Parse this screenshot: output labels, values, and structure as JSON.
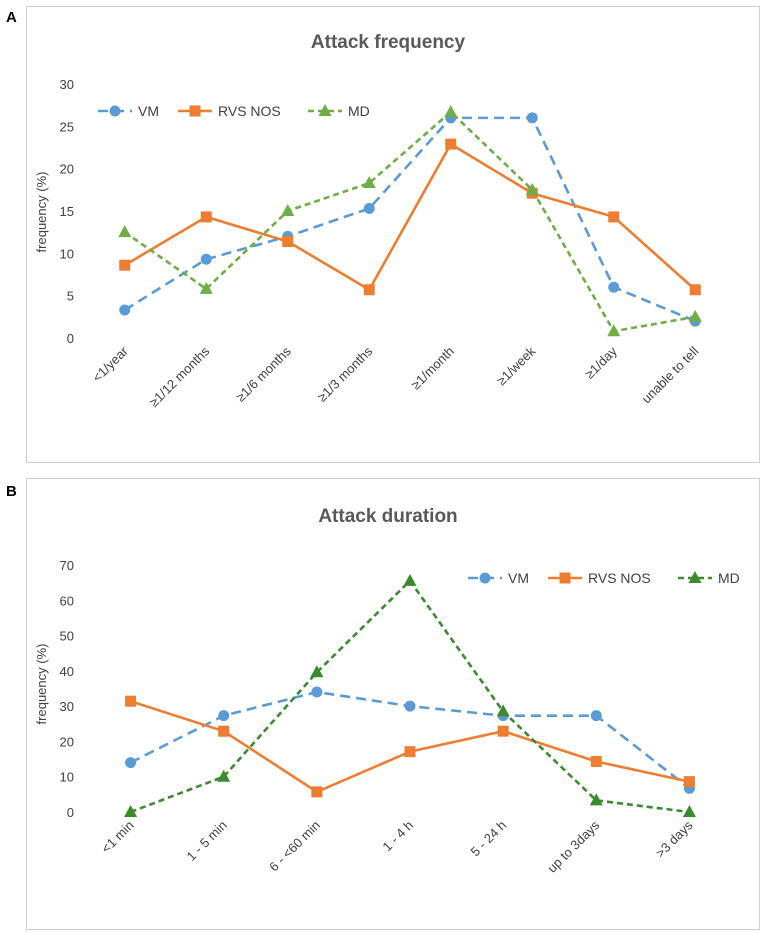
{
  "chart_data": [
    {
      "panel": "A",
      "type": "line",
      "title": "Attack frequency",
      "xlabel": "",
      "ylabel": "frequency (%)",
      "ylim": [
        0,
        30
      ],
      "yticks": [
        0,
        5,
        10,
        15,
        20,
        25,
        30
      ],
      "legend_position": "top-left",
      "categories": [
        "<1/year",
        "≥1/12 months",
        "≥1/6 months",
        "≥1/3 months",
        "≥1/month",
        "≥1/week",
        "≥1/day",
        "unable to tell"
      ],
      "series": [
        {
          "name": "VM",
          "color": "#5B9BD5",
          "marker": "circle",
          "dash": "dashed",
          "values": [
            3.3,
            9.3,
            12.0,
            15.3,
            26.0,
            26.0,
            6.0,
            2.0
          ]
        },
        {
          "name": "RVS NOS",
          "color": "#ED7D31",
          "marker": "square",
          "dash": "solid",
          "values": [
            8.6,
            14.3,
            11.4,
            5.7,
            22.9,
            17.1,
            14.3,
            5.7
          ]
        },
        {
          "name": "MD",
          "color": "#70AD47",
          "marker": "triangle",
          "dash": "dotted",
          "values": [
            12.5,
            5.8,
            15.0,
            18.3,
            26.7,
            17.5,
            0.8,
            2.5
          ]
        }
      ]
    },
    {
      "panel": "B",
      "type": "line",
      "title": "Attack duration",
      "xlabel": "",
      "ylabel": "frequency (%)",
      "ylim": [
        0,
        70
      ],
      "yticks": [
        0,
        10,
        20,
        30,
        40,
        50,
        60,
        70
      ],
      "legend_position": "top-right",
      "categories": [
        "<1 min",
        "1 - 5 min",
        "6 - <60 min",
        "1 - 4 h",
        "5 - 24 h",
        "up to 3days",
        ">3 days"
      ],
      "series": [
        {
          "name": "VM",
          "color": "#5B9BD5",
          "marker": "circle",
          "dash": "dashed",
          "values": [
            14.0,
            27.3,
            34.0,
            30.0,
            27.3,
            27.3,
            6.7
          ]
        },
        {
          "name": "RVS NOS",
          "color": "#ED7D31",
          "marker": "square",
          "dash": "solid",
          "values": [
            31.4,
            22.9,
            5.7,
            17.1,
            22.9,
            14.3,
            8.6
          ]
        },
        {
          "name": "MD",
          "color": "#3C8A2E",
          "marker": "triangle",
          "dash": "dotted",
          "values": [
            0.0,
            10.0,
            39.6,
            65.5,
            28.5,
            3.3,
            0.0
          ]
        }
      ]
    }
  ]
}
